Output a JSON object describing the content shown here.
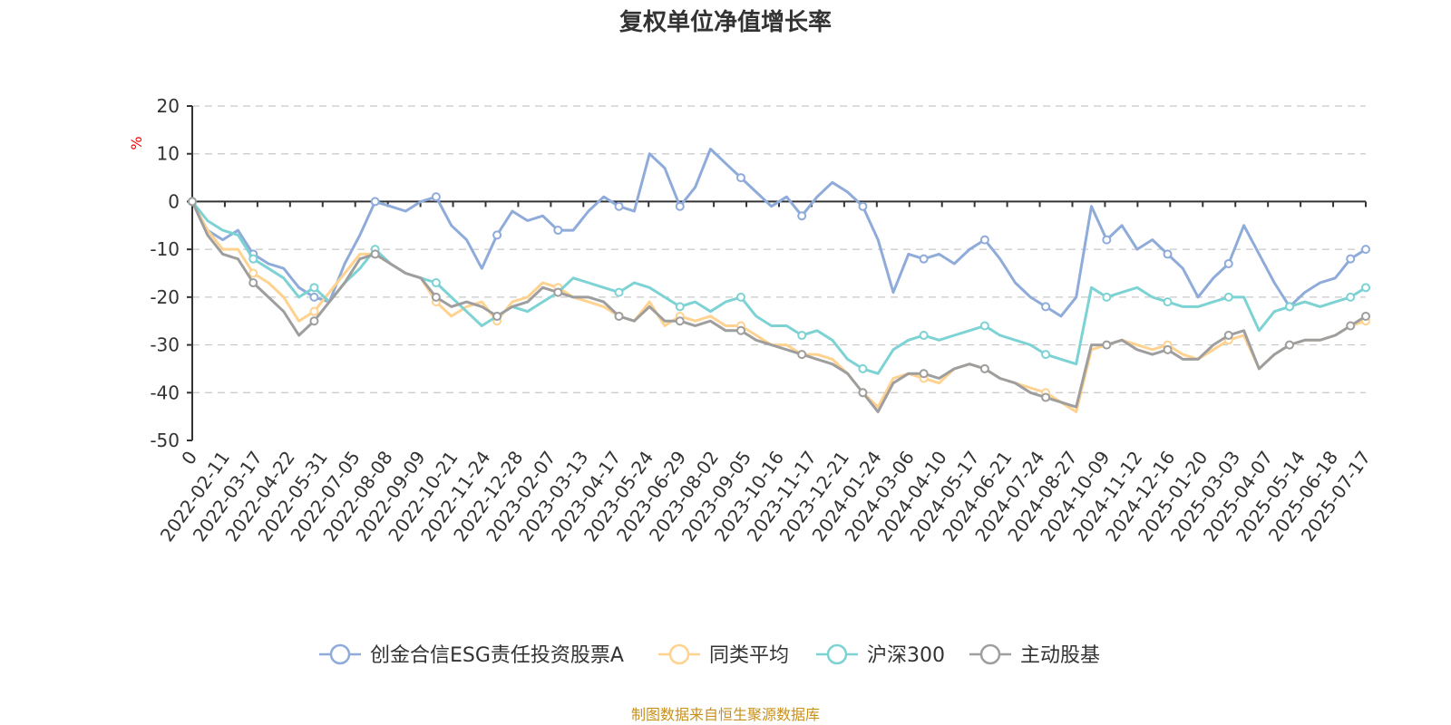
{
  "chart_data": {
    "type": "line",
    "title": "复权单位净值增长率",
    "ylabel": "%",
    "ylim": [
      -50,
      20
    ],
    "yticks": [
      -50,
      -40,
      -30,
      -20,
      -10,
      0,
      10,
      20
    ],
    "grid": true,
    "legend_position": "bottom",
    "source": "制图数据来自恒生聚源数据库",
    "x_tick_labels": [
      "0",
      "2022-02-11",
      "2022-03-17",
      "2022-04-22",
      "2022-05-31",
      "2022-07-05",
      "2022-08-08",
      "2022-09-09",
      "2022-10-21",
      "2022-11-24",
      "2022-12-28",
      "2023-02-07",
      "2023-03-13",
      "2023-04-17",
      "2023-05-24",
      "2023-06-29",
      "2023-08-02",
      "2023-09-05",
      "2023-10-16",
      "2023-11-17",
      "2023-12-21",
      "2024-01-24",
      "2024-03-06",
      "2024-04-10",
      "2024-05-17",
      "2024-06-21",
      "2024-07-24",
      "2024-08-27",
      "2024-10-09",
      "2024-11-12",
      "2024-12-16",
      "2025-01-20",
      "2025-03-03",
      "2025-04-07",
      "2025-05-14",
      "2025-06-18",
      "2025-07-17"
    ],
    "series": [
      {
        "name": "创金合信ESG责任投资股票A",
        "color": "#8eabd9",
        "values": [
          0,
          -6,
          -8,
          -6,
          -11,
          -13,
          -14,
          -18,
          -20,
          -21,
          -13,
          -7,
          0,
          -1,
          -2,
          0,
          1,
          -5,
          -8,
          -14,
          -7,
          -2,
          -4,
          -3,
          -6,
          -6,
          -2,
          1,
          -1,
          -2,
          10,
          7,
          -1,
          3,
          11,
          8,
          5,
          2,
          -1,
          1,
          -3,
          1,
          4,
          2,
          -1,
          -8,
          -19,
          -11,
          -12,
          -11,
          -13,
          -10,
          -8,
          -12,
          -17,
          -20,
          -22,
          -24,
          -20,
          -1,
          -8,
          -5,
          -10,
          -8,
          -11,
          -14,
          -20,
          -16,
          -13,
          -5,
          -11,
          -17,
          -22,
          -19,
          -17,
          -16,
          -12,
          -10
        ]
      },
      {
        "name": "同类平均",
        "color": "#ffd28f",
        "values": [
          0,
          -6,
          -10,
          -10,
          -15,
          -17,
          -20,
          -25,
          -23,
          -19,
          -15,
          -11,
          -11,
          -13,
          -15,
          -16,
          -21,
          -24,
          -22,
          -21,
          -25,
          -21,
          -20,
          -17,
          -18,
          -20,
          -21,
          -22,
          -24,
          -25,
          -21,
          -26,
          -24,
          -25,
          -24,
          -26,
          -26,
          -28,
          -30,
          -30,
          -32,
          -32,
          -33,
          -36,
          -40,
          -43,
          -37,
          -36,
          -37,
          -38,
          -35,
          -34,
          -35,
          -37,
          -38,
          -39,
          -40,
          -42,
          -44,
          -31,
          -30,
          -29,
          -30,
          -31,
          -30,
          -32,
          -33,
          -31,
          -29,
          -28,
          -35,
          -32,
          -30,
          -29,
          -29,
          -28,
          -26,
          -25
        ]
      },
      {
        "name": "沪深300",
        "color": "#7dd2d4",
        "values": [
          0,
          -4,
          -6,
          -7,
          -12,
          -14,
          -16,
          -20,
          -18,
          -21,
          -17,
          -14,
          -10,
          -13,
          -15,
          -16,
          -17,
          -20,
          -23,
          -26,
          -24,
          -22,
          -23,
          -21,
          -19,
          -16,
          -17,
          -18,
          -19,
          -17,
          -18,
          -20,
          -22,
          -21,
          -23,
          -21,
          -20,
          -24,
          -26,
          -26,
          -28,
          -27,
          -29,
          -33,
          -35,
          -36,
          -31,
          -29,
          -28,
          -29,
          -28,
          -27,
          -26,
          -28,
          -29,
          -30,
          -32,
          -33,
          -34,
          -18,
          -20,
          -19,
          -18,
          -20,
          -21,
          -22,
          -22,
          -21,
          -20,
          -20,
          -27,
          -23,
          -22,
          -21,
          -22,
          -21,
          -20,
          -18
        ]
      },
      {
        "name": "主动股基",
        "color": "#9e9e9e",
        "values": [
          0,
          -7,
          -11,
          -12,
          -17,
          -20,
          -23,
          -28,
          -25,
          -21,
          -17,
          -12,
          -11,
          -13,
          -15,
          -16,
          -20,
          -22,
          -21,
          -22,
          -24,
          -22,
          -21,
          -18,
          -19,
          -20,
          -20,
          -21,
          -24,
          -25,
          -22,
          -25,
          -25,
          -26,
          -25,
          -27,
          -27,
          -29,
          -30,
          -31,
          -32,
          -33,
          -34,
          -36,
          -40,
          -44,
          -38,
          -36,
          -36,
          -37,
          -35,
          -34,
          -35,
          -37,
          -38,
          -40,
          -41,
          -42,
          -43,
          -30,
          -30,
          -29,
          -31,
          -32,
          -31,
          -33,
          -33,
          -30,
          -28,
          -27,
          -35,
          -32,
          -30,
          -29,
          -29,
          -28,
          -26,
          -24
        ]
      }
    ]
  }
}
